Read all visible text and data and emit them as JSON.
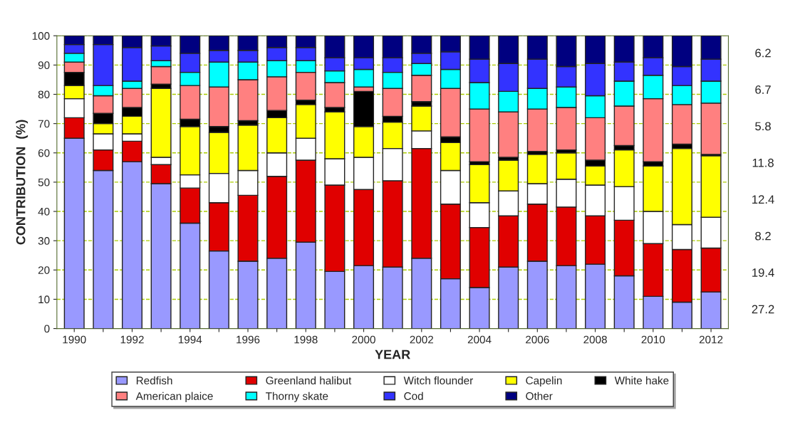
{
  "chart_data": {
    "type": "bar",
    "stacked": true,
    "xlabel": "YEAR",
    "ylabel": "CONTRIBUTION  (%)",
    "categories": [
      "1990",
      null,
      "1992",
      null,
      "1994",
      null,
      "1996",
      null,
      "1998",
      null,
      "2000",
      null,
      "2002",
      null,
      "2004",
      null,
      "2006",
      null,
      "2008",
      null,
      "2010",
      null,
      "2012"
    ],
    "ylim": [
      0,
      100
    ],
    "yticks": [
      0,
      10,
      20,
      30,
      40,
      50,
      60,
      70,
      80,
      90,
      100
    ],
    "grid": "y",
    "legend": "bottom",
    "series": [
      {
        "name": "Redfish",
        "color": "#9999ff",
        "values": [
          65,
          54,
          57,
          49.5,
          36,
          26.5,
          23,
          24,
          29.5,
          19.5,
          21.5,
          21,
          24,
          17,
          14,
          21,
          23,
          21.5,
          22,
          18,
          11,
          9,
          12.5
        ]
      },
      {
        "name": "Greenland halibut",
        "color": "#e00000",
        "values": [
          7,
          7,
          7,
          6.5,
          12,
          16.5,
          22.5,
          28,
          28,
          29.5,
          26,
          29.5,
          37.5,
          25.5,
          20.5,
          17.5,
          19.5,
          20,
          16.5,
          19,
          18,
          18,
          15
        ]
      },
      {
        "name": "Witch flounder",
        "color": "#ffffff",
        "values": [
          6.5,
          5.5,
          2.5,
          2.5,
          4.5,
          10,
          8.5,
          8,
          7.5,
          9,
          11,
          11,
          6,
          11.5,
          8.5,
          8.5,
          7,
          9.5,
          10.5,
          11.5,
          11,
          8.5,
          10.5
        ]
      },
      {
        "name": "Capelin",
        "color": "#ffff00",
        "values": [
          4.5,
          3.5,
          6,
          23.5,
          16.5,
          14,
          15.5,
          12,
          11.5,
          16,
          10.5,
          9,
          8.5,
          9.5,
          13,
          10.5,
          10,
          9,
          6.5,
          12.5,
          15.5,
          26,
          21
        ]
      },
      {
        "name": "White hake",
        "color": "#000000",
        "values": [
          4.5,
          3.5,
          3,
          1.5,
          2.5,
          2,
          1.5,
          2.5,
          1.5,
          1.5,
          12,
          2,
          1.5,
          2,
          1,
          1,
          1,
          1,
          2,
          1.5,
          1.5,
          1.5,
          0.5
        ]
      },
      {
        "name": "American plaice",
        "color": "#ff8080",
        "values": [
          3.5,
          6,
          6.5,
          6,
          11.5,
          13.5,
          14,
          11.5,
          9.5,
          8.5,
          1.5,
          9.5,
          9,
          16.5,
          18,
          15.5,
          14.5,
          14.5,
          14.5,
          13.5,
          21.5,
          13.5,
          17.5
        ]
      },
      {
        "name": "Thorny skate",
        "color": "#00ffff",
        "values": [
          3,
          3.5,
          2.5,
          2,
          4.5,
          8.5,
          6,
          5.5,
          4,
          4,
          6,
          5.5,
          4,
          6.5,
          9,
          7,
          7,
          7,
          7.5,
          8.5,
          8,
          6.5,
          7.5
        ]
      },
      {
        "name": "Cod",
        "color": "#3333ff",
        "values": [
          3,
          14,
          11.5,
          5,
          6.5,
          4,
          4,
          4.5,
          4.5,
          4.5,
          4,
          5,
          3.5,
          6,
          8,
          9.5,
          10,
          7,
          11,
          6.5,
          6,
          6.5,
          7.5
        ]
      },
      {
        "name": "Other",
        "color": "#000080",
        "values": [
          3,
          3,
          4,
          3.5,
          6,
          5,
          5,
          4,
          4,
          7.5,
          7.5,
          7.5,
          6,
          5.5,
          8,
          9.5,
          8,
          10.5,
          9.5,
          9,
          7.5,
          10.5,
          8
        ]
      }
    ],
    "annotations": [
      "6.2",
      "6.7",
      "5.8",
      "11.8",
      "12.4",
      "8.2",
      "19.4",
      "27.2"
    ]
  }
}
